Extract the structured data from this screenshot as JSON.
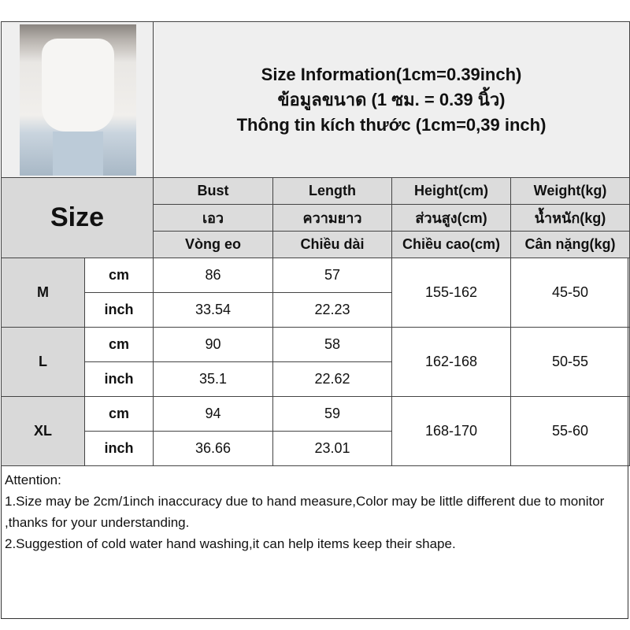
{
  "title": {
    "line1": "Size Information(1cm=0.39inch)",
    "line2": "ข้อมูลขนาด (1 ซม. = 0.39 นิ้ว)",
    "line3": "Thông tin kích thước (1cm=0,39 inch)"
  },
  "size_label": "Size",
  "columns": [
    {
      "en": "Bust",
      "th": "เอว",
      "vi": "Vòng eo"
    },
    {
      "en": "Length",
      "th": "ความยาว",
      "vi": "Chiều dài"
    },
    {
      "en": "Height(cm)",
      "th": "ส่วนสูง(cm)",
      "vi": "Chiều cao(cm)"
    },
    {
      "en": "Weight(kg)",
      "th": "น้ำหนัก(kg)",
      "vi": "Cân nặng(kg)"
    }
  ],
  "rows": [
    {
      "size": "M",
      "cm_label": "cm",
      "inch_label": "inch",
      "bust_cm": "86",
      "length_cm": "57",
      "bust_inch": "33.54",
      "length_inch": "22.23",
      "height": "155-162",
      "weight": "45-50"
    },
    {
      "size": "L",
      "cm_label": "cm",
      "inch_label": "inch",
      "bust_cm": "90",
      "length_cm": "58",
      "bust_inch": "35.1",
      "length_inch": "22.62",
      "height": "162-168",
      "weight": "50-55"
    },
    {
      "size": "XL",
      "cm_label": "cm",
      "inch_label": "inch",
      "bust_cm": "94",
      "length_cm": "59",
      "bust_inch": "36.66",
      "length_inch": "23.01",
      "height": "168-170",
      "weight": "55-60"
    }
  ],
  "attention": {
    "heading": "Attention:",
    "note1": "1.Size may be 2cm/1inch inaccuracy due to hand measure,Color may be little different due to monitor ,thanks for your understanding.",
    "note2": "2.Suggestion of cold water hand washing,it can help items keep their shape."
  }
}
